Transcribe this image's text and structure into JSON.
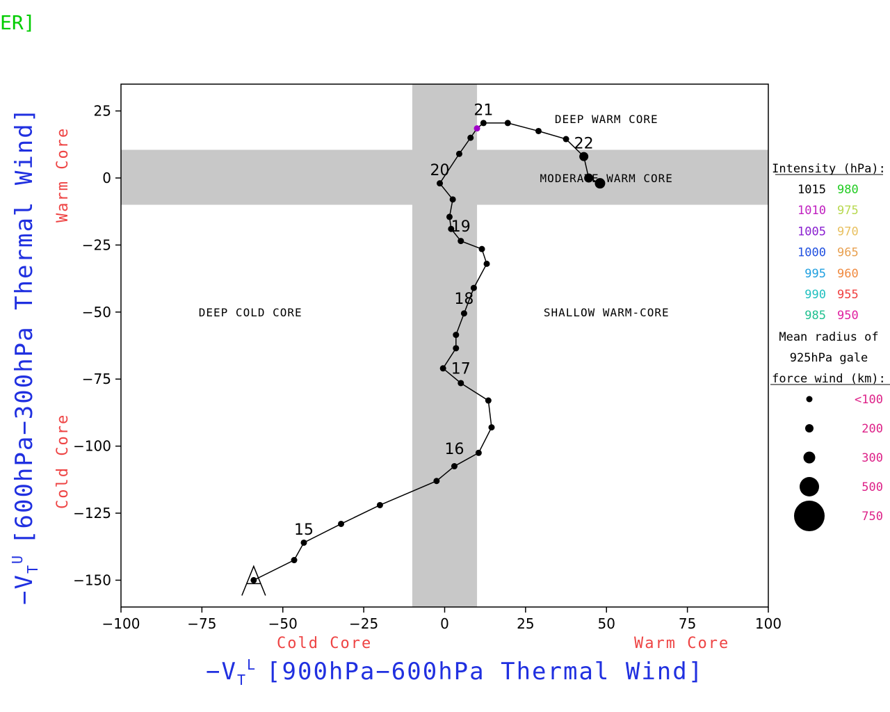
{
  "corner_text": "ER]",
  "chart_data": {
    "type": "scatter",
    "title": "",
    "xlabel": "-V_T^L [900hPa-600hPa Thermal Wind]",
    "ylabel": "-V_T^U [600hPa-300hPa Thermal Wind]",
    "xlim": [
      -100,
      100
    ],
    "ylim": [
      -160,
      35
    ],
    "x_ticks": [
      -100,
      -75,
      -50,
      -25,
      0,
      25,
      50,
      75,
      100
    ],
    "y_ticks": [
      25,
      0,
      -25,
      -50,
      -75,
      -100,
      -125,
      -150
    ],
    "x_tick_labels": [
      "−100",
      "−75",
      "−50",
      "−25",
      "0",
      "25",
      "50",
      "75",
      "100"
    ],
    "y_tick_labels": [
      "25",
      "0",
      "−25",
      "−50",
      "−75",
      "−100",
      "−125",
      "−150"
    ],
    "x_title_prefix": "−V",
    "x_title_sub": "T",
    "x_title_sup": "L",
    "x_title_text": "[900hPa−600hPa Thermal Wind]",
    "y_title_prefix": "−V",
    "y_title_sub": "T",
    "y_title_sup": "U",
    "y_title_text": "[600hPa−300hPa Thermal Wind]",
    "x_left_label": "Cold Core",
    "x_right_label": "Warm Core",
    "y_bottom_label": "Cold Core",
    "y_top_label": "Warm Core",
    "shaded_bands": {
      "x": [
        -10,
        10
      ],
      "y": [
        -10,
        10.5
      ]
    },
    "region_labels": [
      {
        "text": "DEEP WARM CORE",
        "x": 50,
        "y": 22
      },
      {
        "text": "MODERATE WARM CORE",
        "x": 50,
        "y": 0
      },
      {
        "text": "DEEP COLD CORE",
        "x": -60,
        "y": -50
      },
      {
        "text": "SHALLOW WARM-CORE",
        "x": 50,
        "y": -50
      }
    ],
    "start_marker": "A",
    "start_point": {
      "x": -59,
      "y": -150
    },
    "track": [
      {
        "x": -59,
        "y": -150
      },
      {
        "x": -46.5,
        "y": -142.5
      },
      {
        "x": -43.5,
        "y": -136
      },
      {
        "x": -32,
        "y": -129
      },
      {
        "x": -20,
        "y": -122
      },
      {
        "x": -2.5,
        "y": -113
      },
      {
        "x": 3,
        "y": -107.5
      },
      {
        "x": 10.5,
        "y": -102.5
      },
      {
        "x": 14.5,
        "y": -93
      },
      {
        "x": 13.5,
        "y": -83
      },
      {
        "x": 5,
        "y": -76.5
      },
      {
        "x": -0.5,
        "y": -71
      },
      {
        "x": 3.5,
        "y": -63.5
      },
      {
        "x": 3.5,
        "y": -58.5
      },
      {
        "x": 6,
        "y": -50.5
      },
      {
        "x": 9,
        "y": -41
      },
      {
        "x": 13,
        "y": -32
      },
      {
        "x": 11.5,
        "y": -26.5
      },
      {
        "x": 5,
        "y": -23.5
      },
      {
        "x": 2,
        "y": -19
      },
      {
        "x": 1.5,
        "y": -14.5
      },
      {
        "x": 2.5,
        "y": -8
      },
      {
        "x": -1.5,
        "y": -2
      },
      {
        "x": 4.5,
        "y": 9
      },
      {
        "x": 8,
        "y": 15
      },
      {
        "x": 10,
        "y": 18.5,
        "color": "#a000c8"
      },
      {
        "x": 12,
        "y": 20.5
      },
      {
        "x": 19.5,
        "y": 20.5
      },
      {
        "x": 29,
        "y": 17.5
      },
      {
        "x": 37.5,
        "y": 14.5
      },
      {
        "x": 43,
        "y": 8,
        "r": 6.5
      },
      {
        "x": 44.5,
        "y": 0,
        "r": 6.5
      },
      {
        "x": 48,
        "y": -2,
        "r": 7.5
      }
    ],
    "day_labels": [
      {
        "text": "15",
        "x": -43.5,
        "y": -133
      },
      {
        "text": "16",
        "x": 3,
        "y": -103
      },
      {
        "text": "17",
        "x": 5,
        "y": -73
      },
      {
        "text": "18",
        "x": 6,
        "y": -47
      },
      {
        "text": "19",
        "x": 5,
        "y": -20
      },
      {
        "text": "20",
        "x": -1.5,
        "y": 1
      },
      {
        "text": "21",
        "x": 12,
        "y": 23.5
      },
      {
        "text": "22",
        "x": 43,
        "y": 11
      }
    ],
    "legend": {
      "intensity_title": "Intensity (hPa):",
      "intensity": [
        {
          "left": "1015",
          "left_color": "#000000",
          "right": "980",
          "right_color": "#22cc22"
        },
        {
          "left": "1010",
          "left_color": "#c020c0",
          "right": "975",
          "right_color": "#b8d850"
        },
        {
          "left": "1005",
          "left_color": "#8a20d0",
          "right": "970",
          "right_color": "#e8c060"
        },
        {
          "left": "1000",
          "left_color": "#2050e0",
          "right": "965",
          "right_color": "#e8a050"
        },
        {
          "left": "995",
          "left_color": "#20a0e0",
          "right": "960",
          "right_color": "#f08a40"
        },
        {
          "left": "990",
          "left_color": "#20c0c0",
          "right": "955",
          "right_color": "#f04040"
        },
        {
          "left": "985",
          "left_color": "#20c090",
          "right": "950",
          "right_color": "#e020a0"
        }
      ],
      "radius_title": [
        "Mean radius of",
        "925hPa gale",
        "force wind (km):"
      ],
      "radius": [
        {
          "label": "<100",
          "r": 4.5
        },
        {
          "label": "200",
          "r": 6
        },
        {
          "label": "300",
          "r": 8.5
        },
        {
          "label": "500",
          "r": 14
        },
        {
          "label": "750",
          "r": 22
        }
      ],
      "radius_label_color": "#dd2288"
    }
  }
}
